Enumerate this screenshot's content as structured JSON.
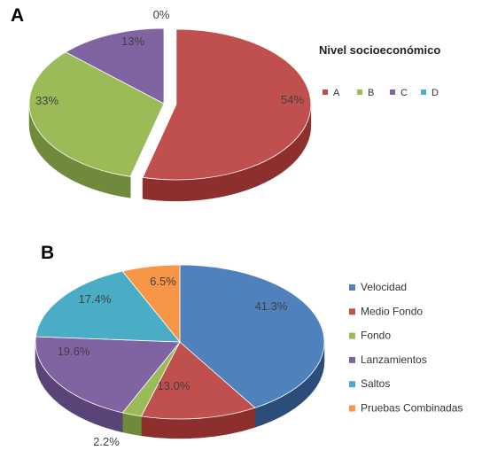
{
  "chart_data": [
    {
      "panel": "A",
      "type": "pie",
      "legend_title": "Nivel socioeconómico",
      "legend_placement": "right",
      "categories": [
        "A",
        "B",
        "C",
        "D"
      ],
      "values": [
        54,
        33,
        13,
        0
      ],
      "labels": [
        "54%",
        "33%",
        "13%",
        "0%"
      ],
      "colors": [
        "#c0504d",
        "#9bbb59",
        "#8064a2",
        "#4bacc6"
      ],
      "side_colors": [
        "#8c2f2d",
        "#6f8a3a",
        "#5a4477",
        "#2f7d93"
      ],
      "exploded": [
        "A"
      ]
    },
    {
      "panel": "B",
      "type": "pie",
      "legend_title": "",
      "legend_placement": "right",
      "categories": [
        "Velocidad",
        "Medio Fondo",
        "Fondo",
        "Lanzamientos",
        "Saltos",
        "Pruebas Combinadas"
      ],
      "values": [
        41.3,
        13.0,
        2.2,
        19.6,
        17.4,
        6.5
      ],
      "labels": [
        "41.3%",
        "13.0%",
        "2.2%",
        "19.6%",
        "17.4%",
        "6.5%"
      ],
      "colors": [
        "#4f81bd",
        "#c0504d",
        "#9bbb59",
        "#8064a2",
        "#4bacc6",
        "#f79646"
      ],
      "side_colors": [
        "#2c4d7a",
        "#8c2f2d",
        "#6f8a3a",
        "#5a4477",
        "#2f7d93",
        "#b8682a"
      ],
      "exploded": []
    }
  ]
}
